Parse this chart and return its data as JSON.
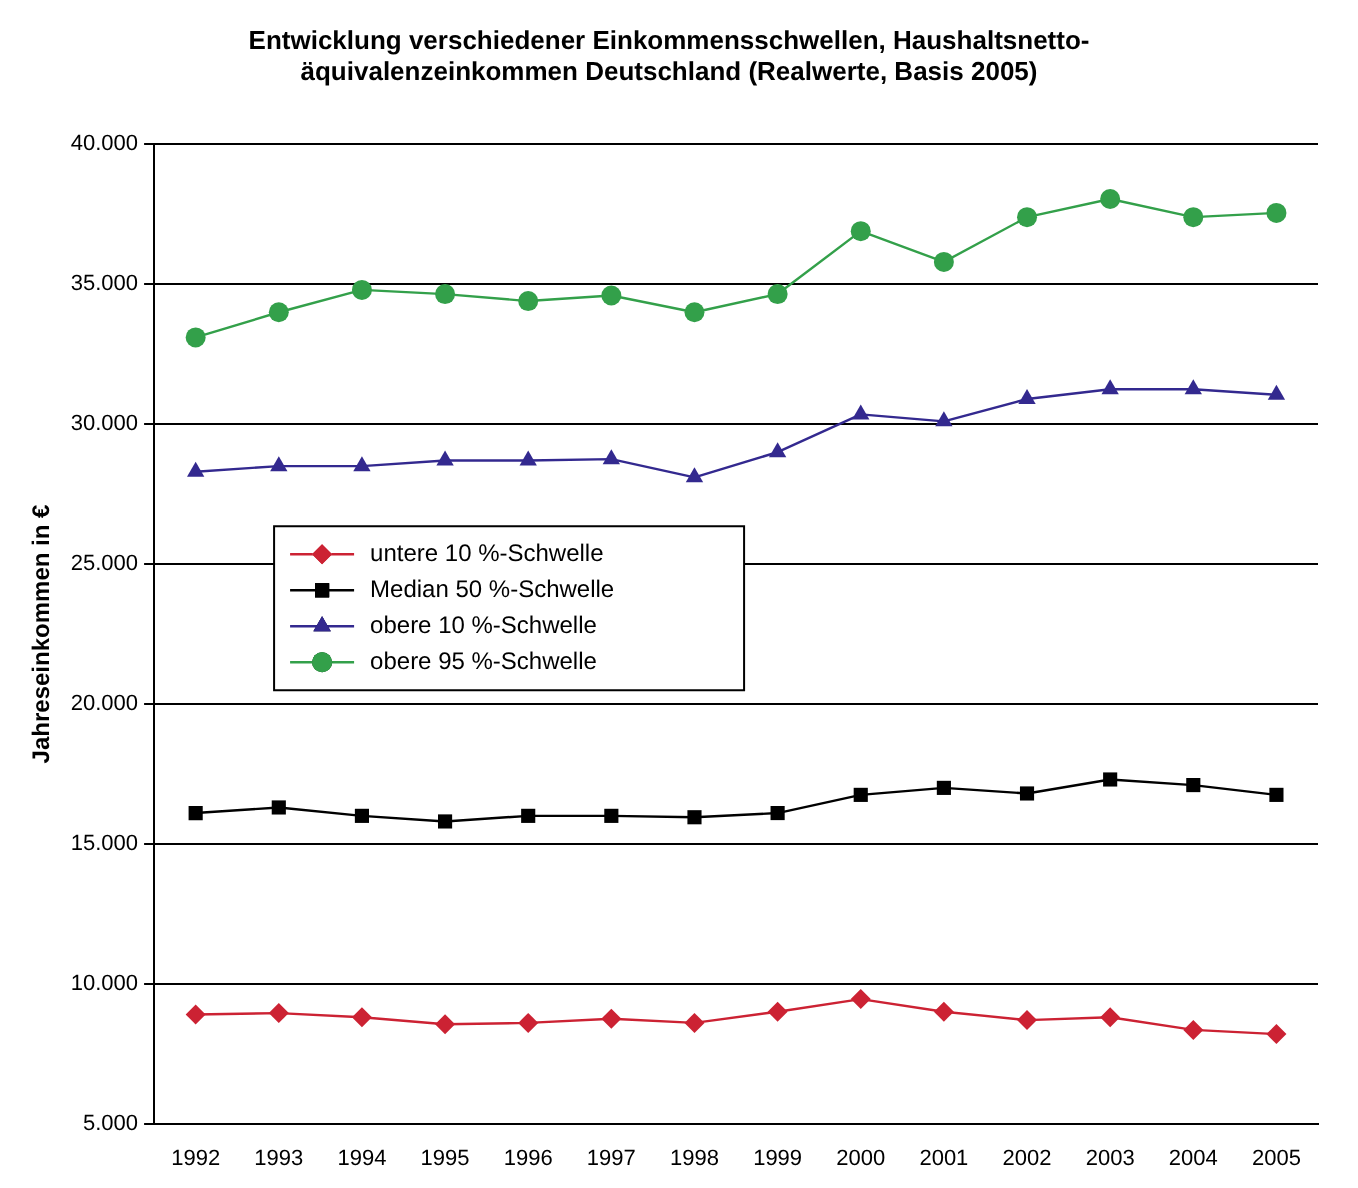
{
  "chart_data": {
    "type": "line",
    "title": [
      "Entwicklung verschiedener Einkommensschwellen, Haushaltsnetto-",
      "äquivalenzeinkommen Deutschland (Realwerte, Basis 2005)"
    ],
    "ylabel": "Jahreseinkommen in €",
    "categories": [
      "1992",
      "1993",
      "1994",
      "1995",
      "1996",
      "1997",
      "1998",
      "1999",
      "2000",
      "2001",
      "2002",
      "2003",
      "2004",
      "2005"
    ],
    "series": [
      {
        "name": "untere 10 %-Schwelle",
        "color": "#cc2233",
        "marker": "diamond",
        "values": [
          8900,
          8950,
          8800,
          8550,
          8600,
          8750,
          8600,
          9000,
          9450,
          9000,
          8700,
          8800,
          8350,
          8200
        ]
      },
      {
        "name": "Median 50 %-Schwelle",
        "color": "#000000",
        "marker": "square",
        "values": [
          16100,
          16300,
          16000,
          15800,
          16000,
          16000,
          15950,
          16100,
          16750,
          17000,
          16800,
          17300,
          17100,
          16750
        ]
      },
      {
        "name": "obere 10 %-Schwelle",
        "color": "#33298f",
        "marker": "triangle",
        "values": [
          28300,
          28500,
          28500,
          28700,
          28700,
          28750,
          28100,
          29000,
          30350,
          30100,
          30900,
          31250,
          31250,
          31050
        ]
      },
      {
        "name": "obere 95 %-Schwelle",
        "color": "#33a04a",
        "marker": "circle",
        "values": [
          33100,
          34000,
          34800,
          34650,
          34400,
          34600,
          34000,
          34650,
          36900,
          35800,
          37400,
          38050,
          37400,
          37550
        ]
      }
    ],
    "ylim": [
      5000,
      40000
    ],
    "yticks": [
      {
        "value": 5000,
        "label": "5.000"
      },
      {
        "value": 10000,
        "label": "10.000"
      },
      {
        "value": 15000,
        "label": "15.000"
      },
      {
        "value": 20000,
        "label": "20.000"
      },
      {
        "value": 25000,
        "label": "25.000"
      },
      {
        "value": 30000,
        "label": "30.000"
      },
      {
        "value": 35000,
        "label": "35.000"
      },
      {
        "value": 40000,
        "label": "40.000"
      }
    ],
    "grid": "y",
    "legend": "center left",
    "line_style": "solid"
  }
}
